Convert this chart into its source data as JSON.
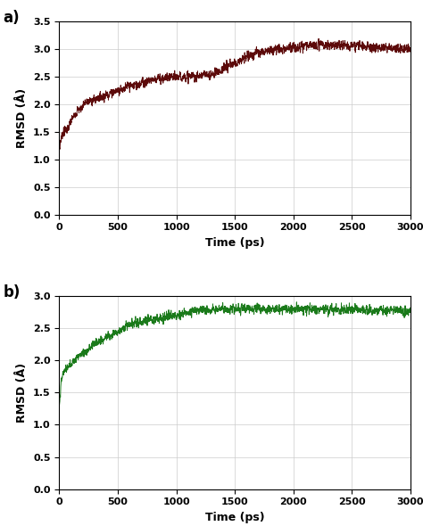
{
  "title_a": "a)",
  "title_b": "b)",
  "xlabel": "Time (ps)",
  "ylabel": "RMSD (Å)",
  "xlim": [
    0,
    3000
  ],
  "ylim_a": [
    0.0,
    3.5
  ],
  "ylim_b": [
    0.0,
    3.0
  ],
  "yticks_a": [
    0.0,
    0.5,
    1.0,
    1.5,
    2.0,
    2.5,
    3.0,
    3.5
  ],
  "yticks_b": [
    0.0,
    0.5,
    1.0,
    1.5,
    2.0,
    2.5,
    3.0
  ],
  "xticks": [
    0,
    500,
    1000,
    1500,
    2000,
    2500,
    3000
  ],
  "color_a": "#5c0a0a",
  "color_b": "#1a7a1a",
  "linewidth": 0.7,
  "grid_color": "#cccccc",
  "bg_color": "#ffffff",
  "fig_bg": "#ffffff",
  "noise_scale_a": 0.07,
  "noise_scale_b": 0.06
}
